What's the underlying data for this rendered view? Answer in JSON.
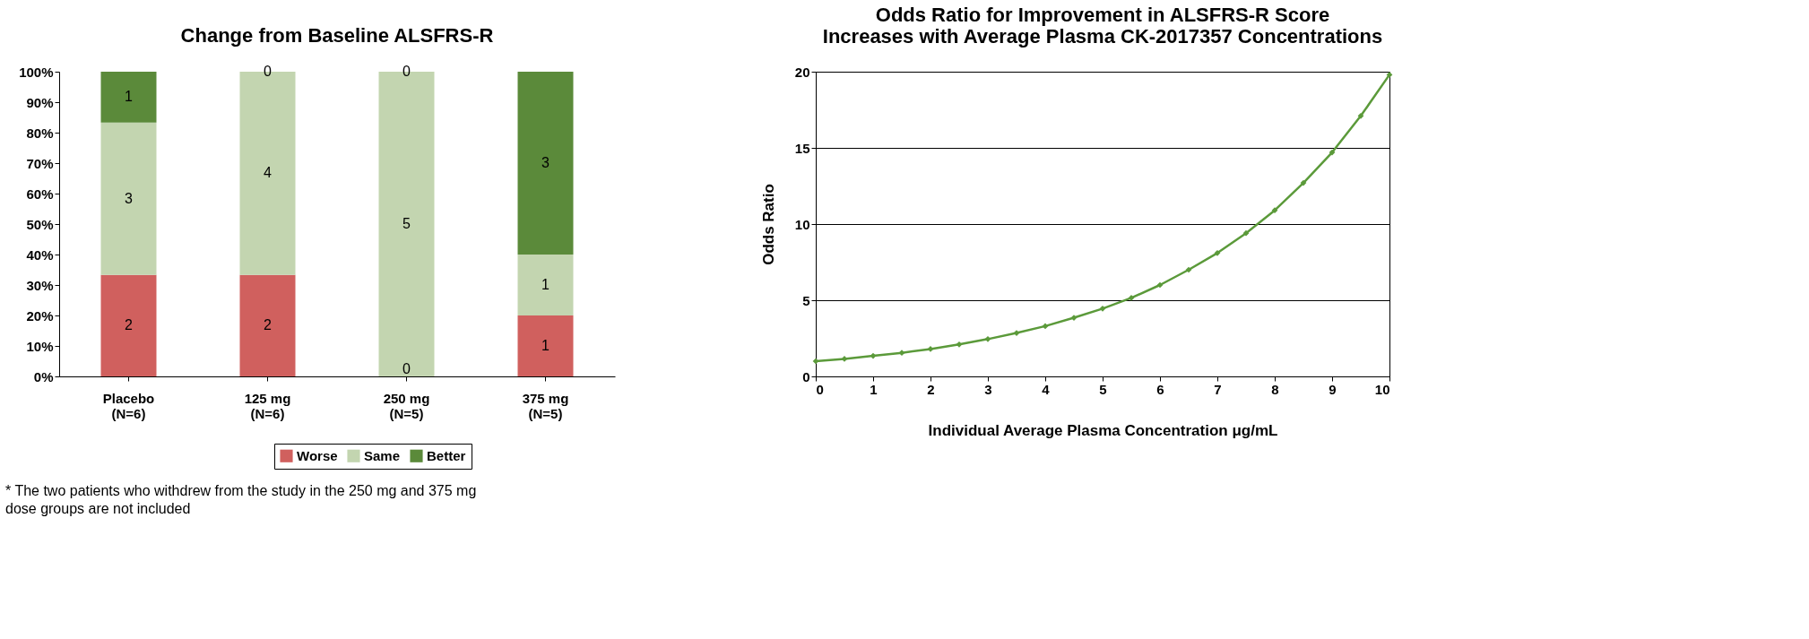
{
  "chart_data": [
    {
      "type": "bar",
      "title": "Change from Baseline ALSFRS-R",
      "stacked": true,
      "categories": [
        "Placebo\n(N=6)",
        "125 mg\n(N=6)",
        "250 mg\n(N=5)",
        "375 mg\n(N=5)"
      ],
      "series": [
        {
          "name": "Worse",
          "color": "#d0605e",
          "values": [
            33.3,
            33.3,
            0,
            20
          ]
        },
        {
          "name": "Same",
          "color": "#c3d5b0",
          "values": [
            50,
            66.7,
            100,
            20
          ]
        },
        {
          "name": "Better",
          "color": "#5b8a3a",
          "values": [
            16.7,
            0,
            0,
            60
          ]
        }
      ],
      "ylim": [
        0,
        100
      ],
      "yticks": [
        {
          "value": 0,
          "label": "0%"
        },
        {
          "value": 10,
          "label": "10%"
        },
        {
          "value": 20,
          "label": "20%"
        },
        {
          "value": 30,
          "label": "30%"
        },
        {
          "value": 40,
          "label": "40%"
        },
        {
          "value": 50,
          "label": "50%"
        },
        {
          "value": 60,
          "label": "60%"
        },
        {
          "value": 70,
          "label": "70%"
        },
        {
          "value": 80,
          "label": "80%"
        },
        {
          "value": 90,
          "label": "90%"
        },
        {
          "value": 100,
          "label": "100%"
        }
      ],
      "legend": "bottom",
      "grid": false,
      "annotations": [
        "* The two patients who withdrew from the study in the 250 mg and 375 mg dose groups are not included",
        "2",
        "3",
        "1",
        "2",
        "4",
        "0",
        "0",
        "5",
        "0",
        "1",
        "1",
        "3"
      ]
    },
    {
      "type": "line",
      "title": "Odds Ratio for Improvement in ALSFRS-R Score\nIncreases with Average Plasma CK-2017357 Concentrations",
      "xlabel": "Individual Average Plasma Concentration μg/mL",
      "ylabel": "Odds Ratio",
      "x": [
        0,
        0.5,
        1,
        1.5,
        2,
        2.5,
        3,
        3.5,
        4,
        4.5,
        5,
        5.5,
        6,
        6.5,
        7,
        7.5,
        8,
        8.5,
        9,
        9.5,
        10
      ],
      "series": [
        {
          "color": "#5b9a3a",
          "values": [
            1.0,
            1.15,
            1.35,
            1.55,
            1.8,
            2.1,
            2.45,
            2.85,
            3.3,
            3.85,
            4.45,
            5.15,
            6.0,
            7.0,
            8.1,
            9.4,
            10.9,
            12.7,
            14.7,
            17.1,
            19.8
          ]
        }
      ],
      "xlim": [
        0,
        10
      ],
      "xticks": [
        0,
        1,
        2,
        3,
        4,
        5,
        6,
        7,
        8,
        9,
        10
      ],
      "ylim": [
        0,
        20
      ],
      "yticks": [
        0,
        5,
        10,
        15,
        20
      ],
      "grid": "y",
      "marker": "diamond",
      "line_style": "solid",
      "legend": false
    }
  ]
}
